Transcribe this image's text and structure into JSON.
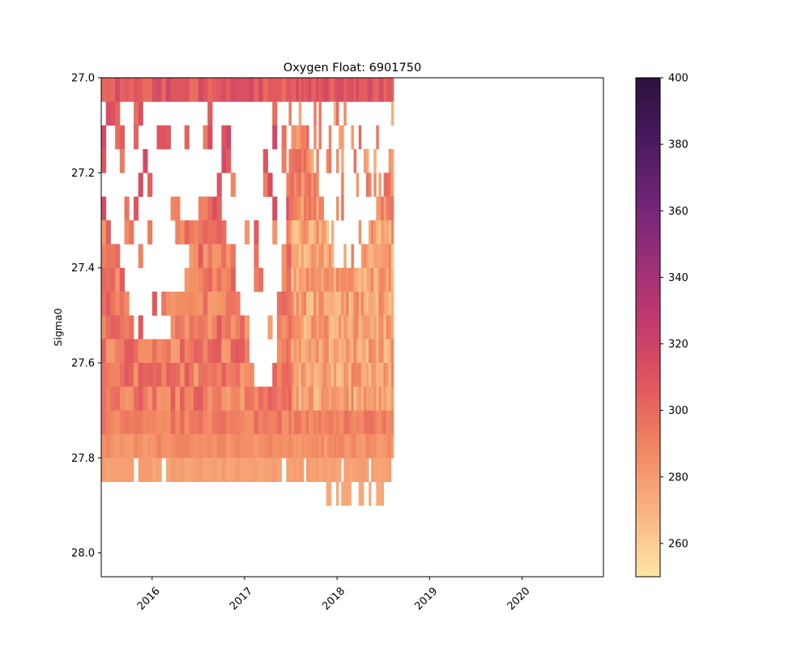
{
  "chart_data": {
    "type": "heatmap",
    "title": "Oxygen Float: 6901750",
    "xlabel": "",
    "ylabel": "Sigma0",
    "x_ticks": [
      "2016",
      "2017",
      "2018",
      "2019",
      "2020"
    ],
    "y_ticks": [
      "27.0",
      "27.2",
      "27.4",
      "27.6",
      "27.8",
      "28.0"
    ],
    "xlim": [
      2015.45,
      2020.88
    ],
    "ylim": [
      28.05,
      27.0
    ],
    "y_inverted": true,
    "colorbar": {
      "colormap": "magma_r",
      "range": [
        250,
        400
      ],
      "ticks": [
        "260",
        "280",
        "300",
        "320",
        "340",
        "360",
        "380",
        "400"
      ],
      "stops": [
        "#fde7a6",
        "#f9b582",
        "#f28a62",
        "#e35a5e",
        "#c53b6b",
        "#9d2f77",
        "#712478",
        "#491a5e",
        "#2d1141"
      ]
    },
    "data_x_range": [
      2015.45,
      2018.6
    ],
    "bands": [
      {
        "sigma": [
          27.0,
          27.05
        ],
        "oxygen_range": [
          296,
          316
        ],
        "x_extent": [
          2015.45,
          2018.6
        ]
      },
      {
        "sigma": [
          27.05,
          27.5
        ],
        "oxygen_range": [
          262,
          318
        ],
        "coverage": "partial"
      },
      {
        "sigma": [
          27.5,
          27.7
        ],
        "oxygen_range": [
          262,
          305
        ],
        "coverage": "partial"
      },
      {
        "sigma": [
          27.7,
          27.75
        ],
        "oxygen_range": [
          282,
          302
        ],
        "x_extent": [
          2015.45,
          2018.6
        ]
      },
      {
        "sigma": [
          27.75,
          27.8
        ],
        "oxygen_range": [
          278,
          292
        ],
        "x_extent": [
          2015.45,
          2018.6
        ]
      },
      {
        "sigma": [
          27.8,
          27.85
        ],
        "oxygen_range": [
          274,
          282
        ],
        "x_extent": [
          2015.45,
          2018.6
        ]
      },
      {
        "sigma": [
          27.85,
          27.9
        ],
        "oxygen_range": [
          270,
          276
        ],
        "x_extent": [
          2017.85,
          2018.5
        ]
      }
    ],
    "grid": false
  }
}
